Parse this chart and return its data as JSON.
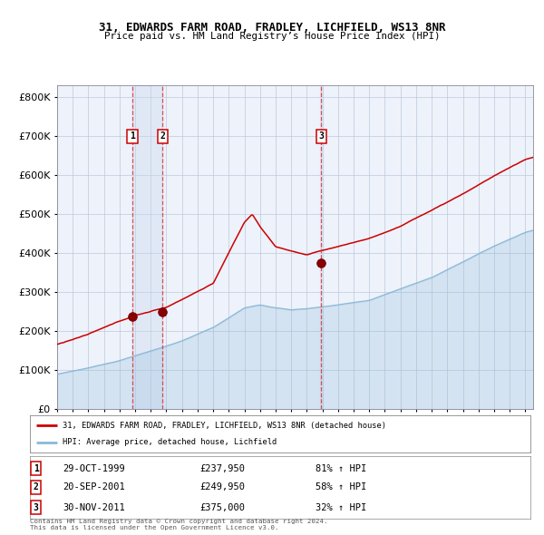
{
  "title": "31, EDWARDS FARM ROAD, FRADLEY, LICHFIELD, WS13 8NR",
  "subtitle": "Price paid vs. HM Land Registry’s House Price Index (HPI)",
  "legend_red": "31, EDWARDS FARM ROAD, FRADLEY, LICHFIELD, WS13 8NR (detached house)",
  "legend_blue": "HPI: Average price, detached house, Lichfield",
  "sales": [
    {
      "num": 1,
      "date": "29-OCT-1999",
      "price": "£237,950",
      "hpi": "81% ↑ HPI",
      "year": 1999.83
    },
    {
      "num": 2,
      "date": "20-SEP-2001",
      "price": "£249,950",
      "hpi": "58% ↑ HPI",
      "year": 2001.75
    },
    {
      "num": 3,
      "date": "30-NOV-2011",
      "price": "£375,000",
      "hpi": "32% ↑ HPI",
      "year": 2011.92
    }
  ],
  "sale_values_red": [
    237950,
    249950,
    375000
  ],
  "footnote1": "Contains HM Land Registry data © Crown copyright and database right 2024.",
  "footnote2": "This data is licensed under the Open Government Licence v3.0.",
  "red_color": "#cc0000",
  "blue_color": "#8ab8d8",
  "marker_color": "#880000",
  "ylim": [
    0,
    830000
  ],
  "xlim_start": 1995.0,
  "xlim_end": 2025.5,
  "bg_color": "#eef2fa"
}
